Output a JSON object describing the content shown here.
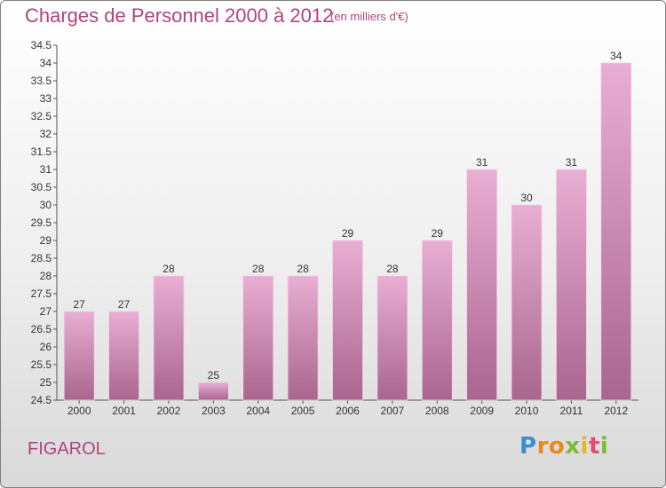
{
  "title": "Charges de Personnel 2000 à 2012",
  "subtitle": "(en milliers d'€)",
  "commune": "FIGAROL",
  "brand": {
    "letters": [
      "P",
      "r",
      "o",
      "x",
      "i",
      "t",
      "i"
    ],
    "colors": [
      "#3a8fd1",
      "#e8891c",
      "#e8891c",
      "#7cbb36",
      "#e8b71c",
      "#e84a6f",
      "#7cbb36"
    ]
  },
  "colors": {
    "bar_light": "#e9aed3",
    "bar_dark": "#a9668f",
    "accent": "#b0457c",
    "axis": "#555555"
  },
  "chart_data": {
    "type": "bar",
    "categories": [
      "2000",
      "2001",
      "2002",
      "2003",
      "2004",
      "2005",
      "2006",
      "2007",
      "2008",
      "2009",
      "2010",
      "2011",
      "2012"
    ],
    "values": [
      27,
      27,
      28,
      25,
      28,
      28,
      29,
      28,
      29,
      31,
      30,
      31,
      34
    ],
    "data_labels": [
      "27",
      "27",
      "28",
      "25",
      "28",
      "28",
      "29",
      "28",
      "29",
      "31",
      "30",
      "31",
      "34"
    ],
    "title": "Charges de Personnel 2000 à 2012",
    "xlabel": "",
    "ylabel": "",
    "ylim": [
      24.5,
      34.5
    ],
    "yticks": [
      24.5,
      25,
      25.5,
      26,
      26.5,
      27,
      27.5,
      28,
      28.5,
      29,
      29.5,
      30,
      30.5,
      31,
      31.5,
      32,
      32.5,
      33,
      33.5,
      34,
      34.5
    ],
    "ytick_labels": [
      "24.5",
      "25",
      "25.5",
      "26",
      "26.5",
      "27",
      "27.5",
      "28",
      "28.5",
      "29",
      "29.5",
      "30",
      "30.5",
      "31",
      "31.5",
      "32",
      "32.5",
      "33",
      "33.5",
      "34",
      "34.5"
    ],
    "grid": false,
    "legend": "none"
  }
}
